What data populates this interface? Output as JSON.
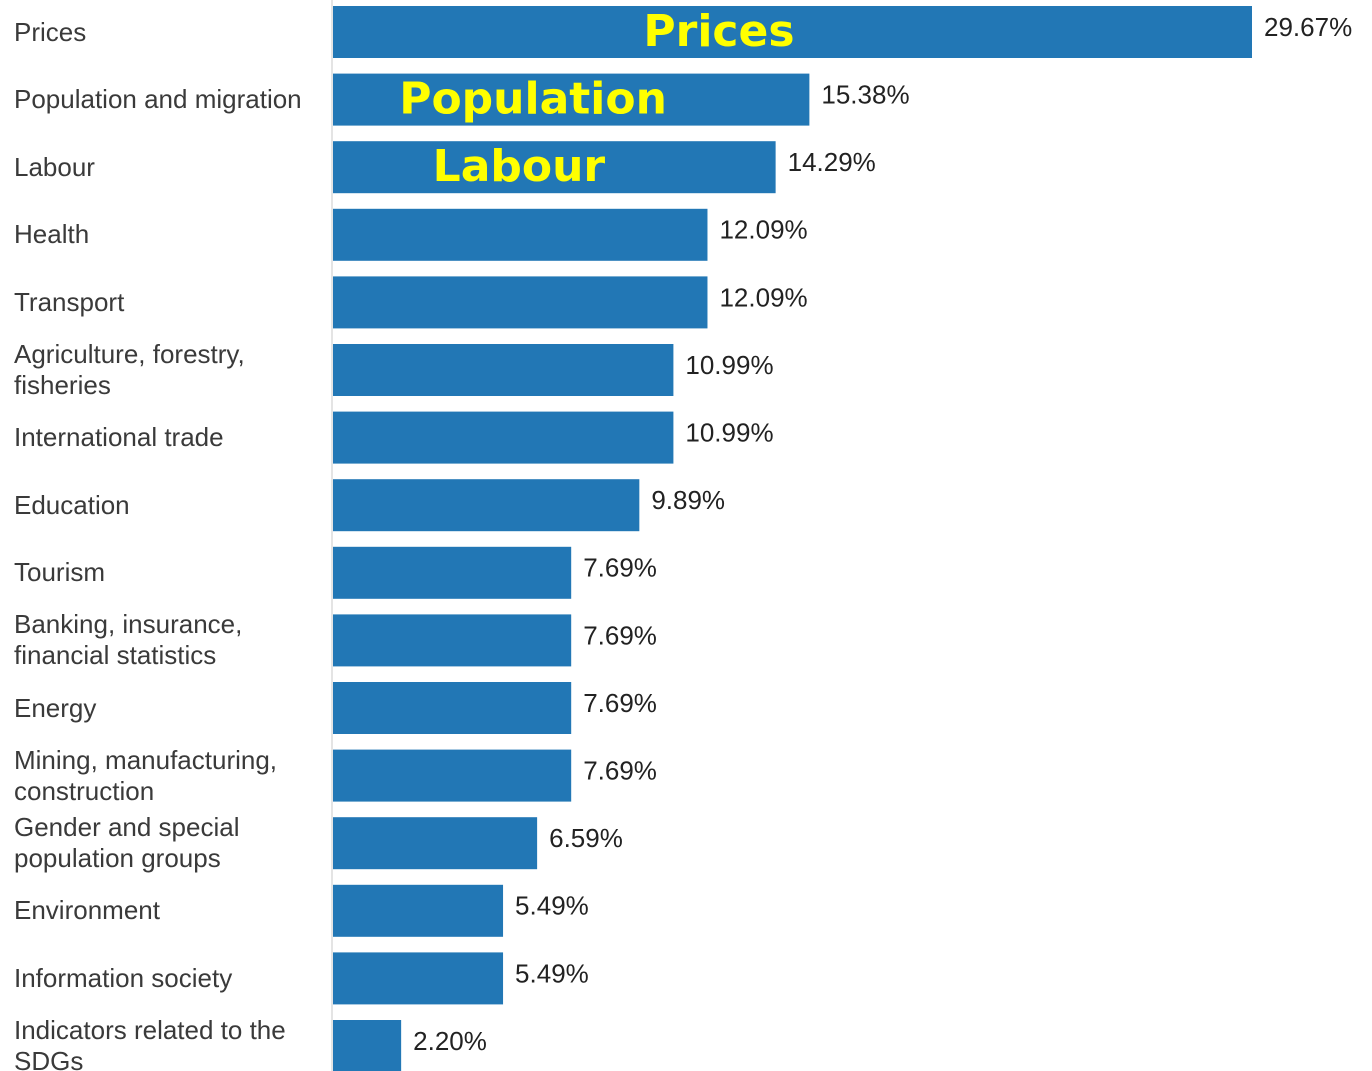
{
  "chart_data": {
    "type": "hbar",
    "categories": [
      "Prices",
      "Population and migration",
      "Labour",
      "Health",
      "Transport",
      "Agriculture, forestry, fisheries",
      "International trade",
      "Education",
      "Tourism",
      "Banking, insurance, financial statistics",
      "Energy",
      "Mining, manufacturing, construction",
      "Gender and special population groups",
      "Environment",
      "Information society",
      "Indicators related to the SDGs"
    ],
    "values": [
      29.67,
      15.38,
      14.29,
      12.09,
      12.09,
      10.99,
      10.99,
      9.89,
      7.69,
      7.69,
      7.69,
      7.69,
      6.59,
      5.49,
      5.49,
      2.2
    ],
    "value_labels": [
      "29.67%",
      "15.38%",
      "14.29%",
      "12.09%",
      "12.09%",
      "10.99%",
      "10.99%",
      "9.89%",
      "7.69%",
      "7.69%",
      "7.69%",
      "7.69%",
      "6.59%",
      "5.49%",
      "5.49%",
      "2.20%"
    ],
    "color": "#2277b5",
    "annotations": [
      {
        "text": "Prices",
        "category": "Prices",
        "color": "#ffff00"
      },
      {
        "text": "Population",
        "category": "Population and migration",
        "color": "#ffff00"
      },
      {
        "text": "Labour",
        "category": "Labour",
        "color": "#ffff00"
      }
    ]
  }
}
